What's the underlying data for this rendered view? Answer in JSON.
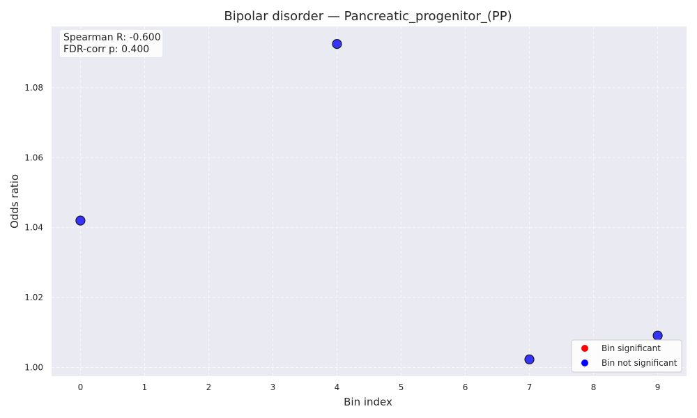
{
  "chart_data": {
    "type": "scatter",
    "title": "Bipolar disorder — Pancreatic_progenitor_(PP)",
    "xlabel": "Bin index",
    "ylabel": "Odds ratio",
    "xlim": [
      -0.45,
      9.45
    ],
    "ylim": [
      0.9975,
      1.0975
    ],
    "x_ticks": [
      0,
      1,
      2,
      3,
      4,
      5,
      6,
      7,
      8,
      9
    ],
    "x_tick_labels": [
      "0",
      "1",
      "2",
      "3",
      "4",
      "5",
      "6",
      "7",
      "8",
      "9"
    ],
    "y_ticks": [
      1.0,
      1.02,
      1.04,
      1.06,
      1.08
    ],
    "y_tick_labels": [
      "1.00",
      "1.02",
      "1.04",
      "1.06",
      "1.08"
    ],
    "grid": true,
    "background": "#eaeaf2",
    "series": [
      {
        "name": "Bin significant",
        "color": "#ff0000",
        "points": []
      },
      {
        "name": "Bin not significant",
        "color": "#0000ff",
        "points": [
          {
            "x": 0,
            "y": 1.042
          },
          {
            "x": 4,
            "y": 1.0925
          },
          {
            "x": 7,
            "y": 1.0023
          },
          {
            "x": 9,
            "y": 1.0091
          }
        ]
      }
    ],
    "legend": {
      "placement": "lower-right",
      "entries": [
        "Bin significant",
        "Bin not significant"
      ]
    },
    "annotation": {
      "placement": "upper-left",
      "lines": [
        "Spearman R: -0.600",
        "FDR-corr p: 0.400"
      ]
    }
  }
}
